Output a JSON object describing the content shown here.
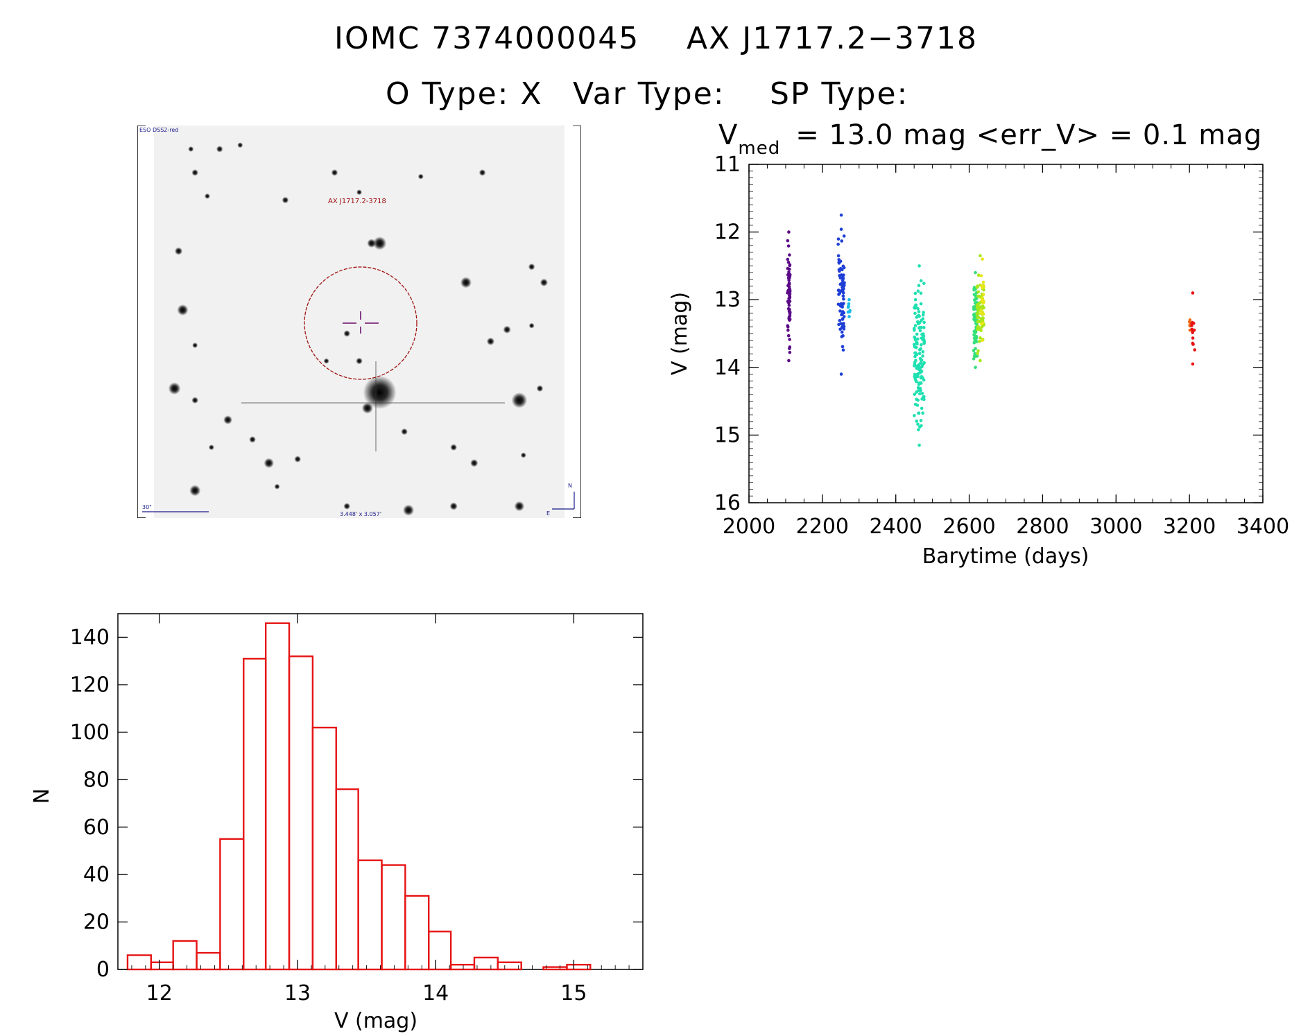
{
  "header": {
    "line1_id": "IOMC 7374000045",
    "line1_name": "AX J1717.2−3718",
    "line2_otype": "O Type: X",
    "line2_vartype": "Var Type:",
    "line2_sptype": "SP Type:"
  },
  "finder_chart": {
    "survey_label": "ESO DSS2-red",
    "target_label": "AX J1717.2-3718",
    "scale_label": "30\"",
    "size_label": "3.448' x 3.057'",
    "north_label": "N",
    "east_label": "E",
    "stars": [
      [
        0.09,
        0.06,
        2.5
      ],
      [
        0.16,
        0.06,
        3
      ],
      [
        0.21,
        0.05,
        2.5
      ],
      [
        0.1,
        0.12,
        3
      ],
      [
        0.13,
        0.18,
        2.5
      ],
      [
        0.06,
        0.32,
        3.5
      ],
      [
        0.32,
        0.19,
        3
      ],
      [
        0.44,
        0.12,
        3
      ],
      [
        0.5,
        0.17,
        2.5
      ],
      [
        0.8,
        0.12,
        3
      ],
      [
        0.55,
        0.3,
        6
      ],
      [
        0.53,
        0.3,
        4
      ],
      [
        0.76,
        0.4,
        5
      ],
      [
        0.92,
        0.36,
        3
      ],
      [
        0.95,
        0.4,
        3.5
      ],
      [
        0.07,
        0.47,
        5
      ],
      [
        0.86,
        0.52,
        3.5
      ],
      [
        0.82,
        0.55,
        3.5
      ],
      [
        0.1,
        0.56,
        2.5
      ],
      [
        0.47,
        0.53,
        3
      ],
      [
        0.92,
        0.51,
        2.5
      ],
      [
        0.5,
        0.6,
        3
      ],
      [
        0.55,
        0.68,
        15
      ],
      [
        0.52,
        0.72,
        5
      ],
      [
        0.05,
        0.67,
        5.5
      ],
      [
        0.89,
        0.7,
        7
      ],
      [
        0.94,
        0.67,
        3
      ],
      [
        0.1,
        0.7,
        3
      ],
      [
        0.18,
        0.75,
        4
      ],
      [
        0.24,
        0.8,
        3
      ],
      [
        0.14,
        0.82,
        2.5
      ],
      [
        0.28,
        0.86,
        4.5
      ],
      [
        0.35,
        0.85,
        3
      ],
      [
        0.61,
        0.78,
        3
      ],
      [
        0.73,
        0.82,
        3
      ],
      [
        0.78,
        0.86,
        3.5
      ],
      [
        0.9,
        0.84,
        2.5
      ],
      [
        0.1,
        0.93,
        5
      ],
      [
        0.3,
        0.92,
        2.5
      ],
      [
        0.47,
        0.97,
        3
      ],
      [
        0.62,
        0.98,
        5
      ],
      [
        0.73,
        0.97,
        3.5
      ],
      [
        0.89,
        0.97,
        4.5
      ],
      [
        0.65,
        0.13,
        2.5
      ],
      [
        0.42,
        0.6,
        2.5
      ]
    ]
  },
  "chart_data": [
    {
      "type": "scatter",
      "title": "V_med = 13.0 mag <err_V> = 0.1 mag",
      "title_parts": {
        "v": "V",
        "sub": "med",
        "rest": "= 13.0 mag <err_V> = 0.1 mag"
      },
      "xlabel": "Barytime (days)",
      "ylabel": "V (mag)",
      "xlim": [
        2000,
        3400
      ],
      "ylim": [
        16,
        11
      ],
      "y_inverted": true,
      "x_ticks": [
        2000,
        2200,
        2400,
        2600,
        2800,
        3000,
        3200,
        3400
      ],
      "y_ticks": [
        11,
        12,
        13,
        14,
        15,
        16
      ],
      "color_encoding": "time (rainbow: purple to red)",
      "colors": [
        "#5a0a87",
        "#1f3fd6",
        "#19b9e6",
        "#1fe0b0",
        "#36e07a",
        "#a8e619",
        "#e6e619",
        "#f0b419",
        "#f06a14",
        "#e61414"
      ],
      "groups": [
        {
          "x_range": [
            2105,
            2112
          ],
          "y_range": [
            12.0,
            13.9
          ],
          "n": 70,
          "color_index": 0
        },
        {
          "x_range": [
            2243,
            2260
          ],
          "y_range": [
            11.75,
            14.1
          ],
          "n": 75,
          "color_index": 1
        },
        {
          "x_range": [
            2270,
            2276
          ],
          "y_range": [
            13.0,
            13.25
          ],
          "n": 6,
          "color_index": 2
        },
        {
          "x_range": [
            2450,
            2478
          ],
          "y_range": [
            12.5,
            15.15
          ],
          "n": 140,
          "color_index": 3
        },
        {
          "x_range": [
            2612,
            2622
          ],
          "y_range": [
            12.6,
            14.0
          ],
          "n": 70,
          "color_index": 4
        },
        {
          "x_range": [
            2620,
            2640
          ],
          "y_range": [
            12.35,
            13.9
          ],
          "n": 70,
          "color_index": 5
        },
        {
          "x_range": [
            2632,
            2640
          ],
          "y_range": [
            12.4,
            13.6
          ],
          "n": 20,
          "color_index": 6
        },
        {
          "x_range": [
            3200,
            3203
          ],
          "y_range": [
            13.3,
            13.45
          ],
          "n": 3,
          "color_index": 8
        },
        {
          "x_range": [
            3203,
            3215
          ],
          "y_range": [
            12.9,
            13.95
          ],
          "n": 14,
          "color_index": 9
        }
      ]
    },
    {
      "type": "bar",
      "subtype": "histogram",
      "xlabel": "V (mag)",
      "ylabel": "N",
      "xlim": [
        11.7,
        15.5
      ],
      "ylim": [
        0,
        150
      ],
      "x_ticks": [
        12,
        13,
        14,
        15
      ],
      "y_ticks": [
        0,
        20,
        40,
        60,
        80,
        100,
        120,
        140
      ],
      "bar_color": "#e61414",
      "bin_edges": [
        11.77,
        11.94,
        12.1,
        12.27,
        12.44,
        12.61,
        12.77,
        12.94,
        13.11,
        13.28,
        13.44,
        13.61,
        13.78,
        13.95,
        14.11,
        14.28,
        14.45,
        14.62,
        14.78,
        14.95,
        15.12
      ],
      "values": [
        6,
        3,
        12,
        7,
        55,
        131,
        146,
        132,
        102,
        76,
        46,
        44,
        31,
        16,
        2,
        5,
        3,
        0,
        1,
        2
      ]
    }
  ]
}
